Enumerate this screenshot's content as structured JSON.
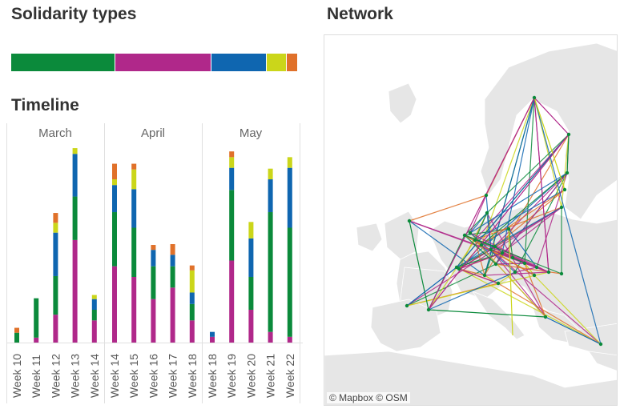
{
  "solidarity_section": {
    "title": "Solidarity types",
    "types": [
      {
        "name": "green",
        "color": "#0b8a3b",
        "share": 0.363
      },
      {
        "name": "magenta",
        "color": "#b0288a",
        "share": 0.335
      },
      {
        "name": "blue",
        "color": "#0f66b0",
        "share": 0.192
      },
      {
        "name": "yellow",
        "color": "#cbd61a",
        "share": 0.07
      },
      {
        "name": "orange",
        "color": "#e0712a",
        "share": 0.04
      }
    ]
  },
  "timeline_section": {
    "title": "Timeline",
    "months": [
      {
        "label": "March",
        "weeks": [
          "Week 10",
          "Week 11",
          "Week 12",
          "Week 13",
          "Week 14"
        ]
      },
      {
        "label": "April",
        "weeks": [
          "Week 14",
          "Week 15",
          "Week 16",
          "Week 17",
          "Week 18"
        ]
      },
      {
        "label": "May",
        "weeks": [
          "Week 18",
          "Week 19",
          "Week 20",
          "Week 21",
          "Week 22"
        ]
      }
    ]
  },
  "chart_data": {
    "type": "bar",
    "stacked": true,
    "stack_order": [
      "magenta",
      "green",
      "blue",
      "yellow",
      "orange"
    ],
    "colors": {
      "magenta": "#b0288a",
      "green": "#0b8a3b",
      "blue": "#0f66b0",
      "yellow": "#cbd61a",
      "orange": "#e0712a"
    },
    "ylim": [
      0,
      240
    ],
    "groups": [
      {
        "month": "March",
        "bars": [
          {
            "week": "Week 10",
            "magenta": 0,
            "green": 12,
            "blue": 0,
            "yellow": 0,
            "orange": 6
          },
          {
            "week": "Week 11",
            "magenta": 6,
            "green": 48,
            "blue": 0,
            "yellow": 0,
            "orange": 0
          },
          {
            "week": "Week 12",
            "magenta": 34,
            "green": 47,
            "blue": 53,
            "yellow": 12,
            "orange": 12
          },
          {
            "week": "Week 13",
            "magenta": 125,
            "green": 53,
            "blue": 52,
            "yellow": 7,
            "orange": 0
          },
          {
            "week": "Week 14",
            "magenta": 27,
            "green": 13,
            "blue": 13,
            "yellow": 5,
            "orange": 0
          }
        ]
      },
      {
        "month": "April",
        "bars": [
          {
            "week": "Week 14",
            "magenta": 93,
            "green": 66,
            "blue": 33,
            "yellow": 7,
            "orange": 19
          },
          {
            "week": "Week 15",
            "magenta": 80,
            "green": 60,
            "blue": 47,
            "yellow": 24,
            "orange": 7
          },
          {
            "week": "Week 16",
            "magenta": 53,
            "green": 40,
            "blue": 20,
            "yellow": 0,
            "orange": 6
          },
          {
            "week": "Week 17",
            "magenta": 67,
            "green": 26,
            "blue": 14,
            "yellow": 0,
            "orange": 13
          },
          {
            "week": "Week 18",
            "magenta": 27,
            "green": 20,
            "blue": 14,
            "yellow": 27,
            "orange": 6
          }
        ]
      },
      {
        "month": "May",
        "bars": [
          {
            "week": "Week 18",
            "magenta": 7,
            "green": 0,
            "blue": 6,
            "yellow": 0,
            "orange": 0
          },
          {
            "week": "Week 19",
            "magenta": 100,
            "green": 86,
            "blue": 27,
            "yellow": 13,
            "orange": 7
          },
          {
            "week": "Week 20",
            "magenta": 40,
            "green": 40,
            "blue": 47,
            "yellow": 20,
            "orange": 0
          },
          {
            "week": "Week 21",
            "magenta": 13,
            "green": 146,
            "blue": 40,
            "yellow": 13,
            "orange": 0
          },
          {
            "week": "Week 22",
            "magenta": 7,
            "green": 133,
            "blue": 73,
            "yellow": 13,
            "orange": 0
          }
        ]
      }
    ]
  },
  "network_section": {
    "title": "Network",
    "attribution": "© Mapbox © OSM",
    "node_color": "#0b8a3b",
    "land_color": "#e6e6e6",
    "sea_color": "#ffffff"
  }
}
